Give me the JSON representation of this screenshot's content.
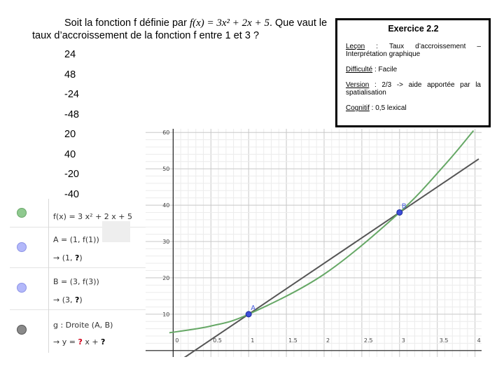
{
  "question": {
    "prefix": "Soit la fonction f définie par ",
    "formula": "f(x) = 3x² + 2x + 5",
    "suffix": ". Que vaut le taux d’accroissement de la fonction f entre 1 et 3 ?"
  },
  "choices": [
    "24",
    "48",
    "-24",
    "-48",
    "20",
    "40",
    "-20",
    "-40"
  ],
  "card": {
    "title": "Exercice 2.2",
    "lecon_label": "Leçon",
    "lecon_value": "Taux d’accroissement – Interprétation graphique",
    "difficulte_label": "Difficulté",
    "difficulte_value": "Facile",
    "version_label": "Version",
    "version_value": "2/3 -> aide apportée par la spatialisation",
    "cognitif_label": "Cognitif",
    "cognitif_value": "0,5 lexical"
  },
  "algebra": {
    "f": {
      "definition": "f(x) = 3 x² + 2 x + 5",
      "color": "#7fbf7f"
    },
    "A": {
      "definition": "A = (1, f(1))",
      "value_prefix": "→  (1, ",
      "value_unknown": "?",
      "value_suffix": ")",
      "color": "#a8aef5"
    },
    "B": {
      "definition": "B = (3, f(3))",
      "value_prefix": "→  (3, ",
      "value_unknown": "?",
      "value_suffix": ")",
      "color": "#a8aef5"
    },
    "g": {
      "definition": "g : Droite (A, B)",
      "value_prefix": "→   y = ",
      "unknown_slope": "?",
      "value_mid": " x + ",
      "unknown_intercept": "?",
      "color": "#777777"
    }
  },
  "chart_data": {
    "type": "line",
    "x_ticks": [
      "0",
      "0.5",
      "1",
      "1.5",
      "2",
      "2.5",
      "3",
      "3.5",
      "4"
    ],
    "y_ticks": [
      "10",
      "20",
      "30",
      "40",
      "50",
      "60"
    ],
    "xlim": [
      -0.05,
      4.05
    ],
    "ylim": [
      -1,
      61
    ],
    "grid": true,
    "curve": {
      "name": "f",
      "color": "#66a866",
      "samples": [
        [
          -0.05,
          4.9
        ],
        [
          0.5,
          6.75
        ],
        [
          1,
          10
        ],
        [
          2,
          21
        ],
        [
          3,
          38
        ],
        [
          3.6,
          51.1
        ],
        [
          3.98,
          60.5
        ]
      ]
    },
    "line": {
      "name": "g",
      "color": "#555555",
      "slope": 14,
      "intercept": -4
    },
    "points": [
      {
        "label": "A",
        "x": 1,
        "y": 10,
        "color": "#3d4ed8"
      },
      {
        "label": "B",
        "x": 3,
        "y": 38,
        "color": "#3d4ed8"
      }
    ]
  }
}
